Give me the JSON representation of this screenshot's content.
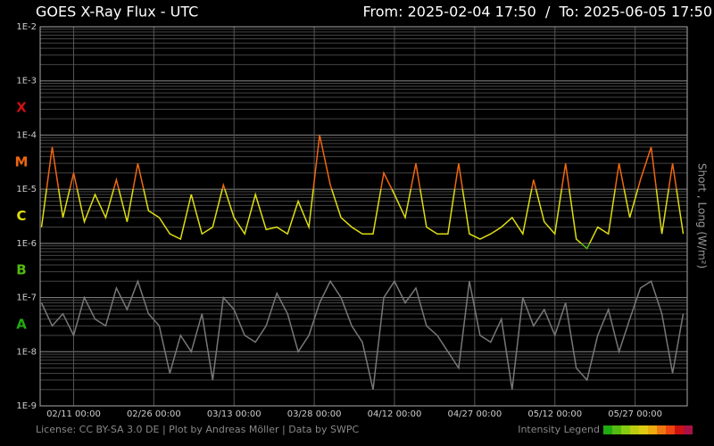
{
  "chart_data": {
    "type": "line",
    "title": "GOES X-Ray Flux - UTC",
    "range_text": "From: 2025-02-04 17:50  /  To: 2025-06-05 17:50",
    "ylabel": "Short , Long (W/m²)",
    "footer": "License: CC BY-SA 3.0 DE | Plot by Andreas Möller | Data by SWPC",
    "legend_title": "Intensity Legend",
    "intensity_colors": [
      "#22aa11",
      "#55bb11",
      "#88cc11",
      "#bbcc11",
      "#ddcc11",
      "#eeaa11",
      "#ee7711",
      "#ee4411",
      "#cc1111",
      "#aa1144"
    ],
    "log_y": true,
    "grid": true,
    "ylim": [
      1e-09,
      0.01
    ],
    "yticks": [
      {
        "value": 1e-09,
        "label": "1E-9"
      },
      {
        "value": 1e-08,
        "label": "1E-8"
      },
      {
        "value": 1e-07,
        "label": "1E-7"
      },
      {
        "value": 1e-06,
        "label": "1E-6"
      },
      {
        "value": 1e-05,
        "label": "1E-5"
      },
      {
        "value": 0.0001,
        "label": "1E-4"
      },
      {
        "value": 0.001,
        "label": "1E-3"
      },
      {
        "value": 0.01,
        "label": "1E-2"
      }
    ],
    "y_minor_ticks": [
      2e-09,
      3e-09,
      4e-09,
      5e-09,
      6e-09,
      7e-09,
      8e-09,
      9e-09,
      2e-08,
      3e-08,
      4e-08,
      5e-08,
      6e-08,
      7e-08,
      8e-08,
      9e-08,
      2e-07,
      3e-07,
      4e-07,
      5e-07,
      6e-07,
      7e-07,
      8e-07,
      9e-07,
      2e-06,
      3e-06,
      4e-06,
      5e-06,
      6e-06,
      7e-06,
      8e-06,
      9e-06,
      2e-05,
      3e-05,
      4e-05,
      5e-05,
      6e-05,
      7e-05,
      8e-05,
      9e-05,
      0.0002,
      0.0003,
      0.0004,
      0.0005,
      0.0006,
      0.0007,
      0.0008,
      0.0009,
      0.002,
      0.003,
      0.004,
      0.005,
      0.006,
      0.007,
      0.008,
      0.009
    ],
    "flux_classes": [
      {
        "label": "A",
        "value": 1e-08,
        "color": "#22aa11"
      },
      {
        "label": "B",
        "value": 1e-07,
        "color": "#55bb11"
      },
      {
        "label": "C",
        "value": 1e-06,
        "color": "#dddd11"
      },
      {
        "label": "M",
        "value": 1e-05,
        "color": "#ee6611"
      },
      {
        "label": "X",
        "value": 0.0001,
        "color": "#cc1111"
      }
    ],
    "xlim": [
      "2025-02-04 17:50",
      "2025-06-05 17:50"
    ],
    "xticks": [
      {
        "value": "2025-02-11 00:00",
        "label": "02/11 00:00"
      },
      {
        "value": "2025-02-26 00:00",
        "label": "02/26 00:00"
      },
      {
        "value": "2025-03-13 00:00",
        "label": "03/13 00:00"
      },
      {
        "value": "2025-03-28 00:00",
        "label": "03/28 00:00"
      },
      {
        "value": "2025-04-12 00:00",
        "label": "04/12 00:00"
      },
      {
        "value": "2025-04-27 00:00",
        "label": "04/27 00:00"
      },
      {
        "value": "2025-05-12 00:00",
        "label": "05/12 00:00"
      },
      {
        "value": "2025-05-27 00:00",
        "label": "05/27 00:00"
      }
    ],
    "x": [
      "2025-02-05 00:00",
      "2025-02-07 00:00",
      "2025-02-09 00:00",
      "2025-02-11 00:00",
      "2025-02-13 00:00",
      "2025-02-15 00:00",
      "2025-02-17 00:00",
      "2025-02-19 00:00",
      "2025-02-21 00:00",
      "2025-02-23 00:00",
      "2025-02-25 00:00",
      "2025-02-27 00:00",
      "2025-03-01 00:00",
      "2025-03-03 00:00",
      "2025-03-05 00:00",
      "2025-03-07 00:00",
      "2025-03-09 00:00",
      "2025-03-11 00:00",
      "2025-03-13 00:00",
      "2025-03-15 00:00",
      "2025-03-17 00:00",
      "2025-03-19 00:00",
      "2025-03-21 00:00",
      "2025-03-23 00:00",
      "2025-03-25 00:00",
      "2025-03-27 00:00",
      "2025-03-29 00:00",
      "2025-03-31 00:00",
      "2025-04-02 00:00",
      "2025-04-04 00:00",
      "2025-04-06 00:00",
      "2025-04-08 00:00",
      "2025-04-10 00:00",
      "2025-04-12 00:00",
      "2025-04-14 00:00",
      "2025-04-16 00:00",
      "2025-04-18 00:00",
      "2025-04-20 00:00",
      "2025-04-22 00:00",
      "2025-04-24 00:00",
      "2025-04-26 00:00",
      "2025-04-28 00:00",
      "2025-04-30 00:00",
      "2025-05-02 00:00",
      "2025-05-04 00:00",
      "2025-05-06 00:00",
      "2025-05-08 00:00",
      "2025-05-10 00:00",
      "2025-05-12 00:00",
      "2025-05-14 00:00",
      "2025-05-16 00:00",
      "2025-05-18 00:00",
      "2025-05-20 00:00",
      "2025-05-22 00:00",
      "2025-05-24 00:00",
      "2025-05-26 00:00",
      "2025-05-28 00:00",
      "2025-05-30 00:00",
      "2025-06-01 00:00",
      "2025-06-03 00:00",
      "2025-06-05 00:00"
    ],
    "series": [
      {
        "color": "#777777",
        "values": [
          8e-08,
          3e-08,
          5e-08,
          2e-08,
          1e-07,
          4e-08,
          3e-08,
          1.5e-07,
          6e-08,
          2e-07,
          5e-08,
          3e-08,
          4e-09,
          2e-08,
          1e-08,
          5e-08,
          3e-09,
          1e-07,
          6e-08,
          2e-08,
          1.5e-08,
          3e-08,
          1.2e-07,
          5e-08,
          1e-08,
          2e-08,
          8e-08,
          2e-07,
          1e-07,
          3e-08,
          1.5e-08,
          2e-09,
          1e-07,
          2e-07,
          8e-08,
          1.5e-07,
          3e-08,
          2e-08,
          1e-08,
          5e-09,
          2e-07,
          2e-08,
          1.5e-08,
          4e-08,
          2e-09,
          1e-07,
          3e-08,
          6e-08,
          2e-08,
          8e-08,
          5e-09,
          3e-09,
          2e-08,
          6e-08,
          1e-08,
          4e-08,
          1.5e-07,
          2e-07,
          5e-08,
          4e-09,
          5e-08
        ]
      },
      {
        "color": "flux_classes",
        "values": [
          2e-06,
          6e-05,
          3e-06,
          2e-05,
          2.5e-06,
          8e-06,
          3e-06,
          1.5e-05,
          2.5e-06,
          3e-05,
          4e-06,
          3e-06,
          1.5e-06,
          1.2e-06,
          8e-06,
          1.5e-06,
          2e-06,
          1.2e-05,
          3e-06,
          1.5e-06,
          8e-06,
          1.8e-06,
          2e-06,
          1.5e-06,
          6e-06,
          2e-06,
          0.0001,
          1.2e-05,
          3e-06,
          2e-06,
          1.5e-06,
          1.5e-06,
          2e-05,
          8e-06,
          3e-06,
          3e-05,
          2e-06,
          1.5e-06,
          1.5e-06,
          3e-05,
          1.5e-06,
          1.2e-06,
          1.5e-06,
          2e-06,
          3e-06,
          1.5e-06,
          1.5e-05,
          2.5e-06,
          1.5e-06,
          3e-05,
          1.2e-06,
          8e-07,
          2e-06,
          1.5e-06,
          3e-05,
          3e-06,
          1.5e-05,
          6e-05,
          1.5e-06,
          3e-05,
          1.5e-06
        ]
      }
    ]
  }
}
